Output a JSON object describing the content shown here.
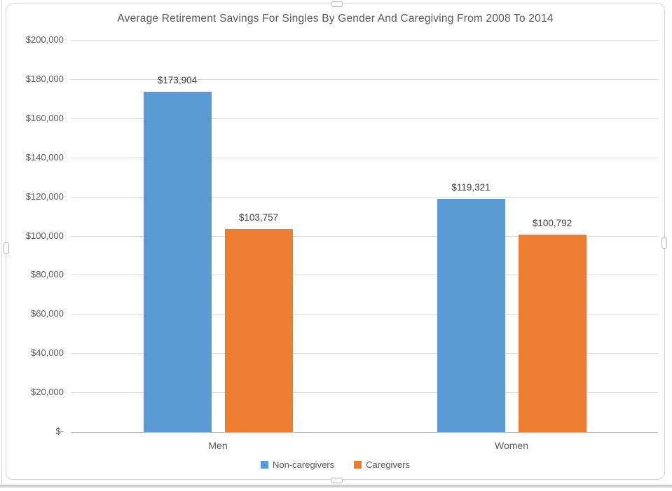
{
  "chart_data": {
    "type": "bar",
    "title": "Average Retirement Savings For Singles By Gender And Caregiving From 2008 To 2014",
    "categories": [
      "Men",
      "Women"
    ],
    "series": [
      {
        "name": "Non-caregivers",
        "color": "#5B9BD5",
        "values": [
          173904,
          119321
        ],
        "labels": [
          "$173,904",
          "$119,321"
        ]
      },
      {
        "name": "Caregivers",
        "color": "#ED7D31",
        "values": [
          103757,
          100792
        ],
        "labels": [
          "$103,757",
          "$100,792"
        ]
      }
    ],
    "ylim": [
      0,
      200000
    ],
    "ytick_step": 20000,
    "ytick_labels": [
      "$-",
      "$20,000",
      "$40,000",
      "$60,000",
      "$80,000",
      "$100,000",
      "$120,000",
      "$140,000",
      "$160,000",
      "$180,000",
      "$200,000"
    ],
    "grid": true,
    "legend_position": "bottom",
    "gridline_color": "#D9D9D9",
    "axis_line_color": "#BFBFBF",
    "text_color": "#595959",
    "label_color": "#3F3F3F"
  }
}
